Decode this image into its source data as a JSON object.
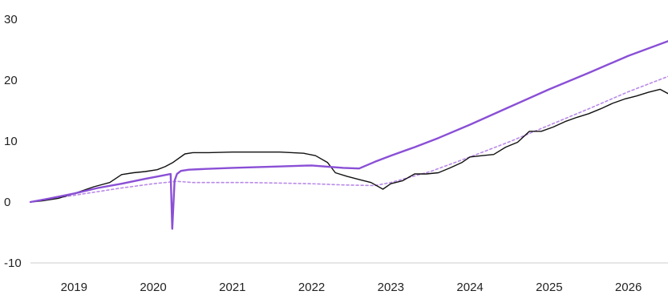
{
  "chart_data": {
    "type": "line",
    "title": "",
    "xlabel": "",
    "ylabel": "",
    "xlim": [
      2018.45,
      2026.5
    ],
    "ylim": [
      -10,
      30
    ],
    "y_ticks": [
      30,
      20,
      10,
      0,
      -10
    ],
    "y_tick_labels": [
      "30",
      "20",
      "10",
      "0",
      "-10"
    ],
    "x_ticks": [
      2019,
      2020,
      2021,
      2022,
      2023,
      2024,
      2025,
      2026
    ],
    "x_tick_labels": [
      "2019",
      "2020",
      "2021",
      "2022",
      "2023",
      "2024",
      "2025",
      "2026"
    ],
    "grid": "baseline at -10 only",
    "legend": "none",
    "series": [
      {
        "style": "solid-black",
        "color": "#111111",
        "x": [
          2018.45,
          2018.6,
          2018.8,
          2018.95,
          2019.05,
          2019.25,
          2019.45,
          2019.6,
          2019.75,
          2019.9,
          2020.05,
          2020.15,
          2020.25,
          2020.4,
          2020.5,
          2020.7,
          2021.0,
          2021.3,
          2021.6,
          2021.9,
          2022.05,
          2022.2,
          2022.3,
          2022.45,
          2022.6,
          2022.75,
          2022.9,
          2023.0,
          2023.15,
          2023.3,
          2023.45,
          2023.6,
          2023.75,
          2023.9,
          2024.0,
          2024.15,
          2024.3,
          2024.45,
          2024.6,
          2024.75,
          2024.9,
          2025.05,
          2025.2,
          2025.35,
          2025.5,
          2025.65,
          2025.8,
          2025.95,
          2026.1,
          2026.25,
          2026.4,
          2026.5
        ],
        "y": [
          0.0,
          0.2,
          0.6,
          1.2,
          1.6,
          2.5,
          3.2,
          4.5,
          4.8,
          5.0,
          5.3,
          5.8,
          6.5,
          7.9,
          8.1,
          8.1,
          8.2,
          8.2,
          8.2,
          8.0,
          7.6,
          6.5,
          4.8,
          4.2,
          3.7,
          3.2,
          2.1,
          3.0,
          3.5,
          4.6,
          4.6,
          4.8,
          5.6,
          6.5,
          7.4,
          7.6,
          7.8,
          9.0,
          9.8,
          11.6,
          11.6,
          12.3,
          13.2,
          13.9,
          14.5,
          15.3,
          16.2,
          16.9,
          17.4,
          18.0,
          18.5,
          17.8
        ]
      },
      {
        "style": "solid-purple",
        "color": "#8a4fd6",
        "x": [
          2018.45,
          2018.7,
          2019.0,
          2019.3,
          2019.6,
          2019.9,
          2020.1,
          2020.22,
          2020.24,
          2020.27,
          2020.3,
          2020.35,
          2020.45,
          2020.6,
          2020.8,
          2021.0,
          2021.5,
          2022.0,
          2022.2,
          2022.4,
          2022.6,
          2022.8,
          2023.0,
          2023.3,
          2023.6,
          2024.0,
          2024.5,
          2025.0,
          2025.5,
          2026.0,
          2026.5
        ],
        "y": [
          0.0,
          0.6,
          1.4,
          2.3,
          3.0,
          3.8,
          4.3,
          4.6,
          -4.4,
          3.5,
          4.6,
          5.1,
          5.3,
          5.4,
          5.5,
          5.6,
          5.8,
          6.0,
          5.8,
          5.6,
          5.5,
          6.6,
          7.6,
          9.0,
          10.5,
          12.7,
          15.6,
          18.5,
          21.2,
          24.0,
          26.4
        ]
      },
      {
        "style": "dotted-purple",
        "color": "#b98ae8",
        "x": [
          2018.45,
          2018.8,
          2019.2,
          2019.6,
          2020.0,
          2020.3,
          2020.5,
          2020.8,
          2021.2,
          2021.6,
          2022.0,
          2022.4,
          2022.8,
          2023.0,
          2023.5,
          2024.0,
          2024.5,
          2025.0,
          2025.5,
          2026.0,
          2026.5
        ],
        "y": [
          0.0,
          0.7,
          1.5,
          2.3,
          3.0,
          3.4,
          3.2,
          3.2,
          3.2,
          3.1,
          3.0,
          2.8,
          2.7,
          3.2,
          5.0,
          7.4,
          9.9,
          12.6,
          15.3,
          18.1,
          20.6
        ]
      }
    ]
  }
}
